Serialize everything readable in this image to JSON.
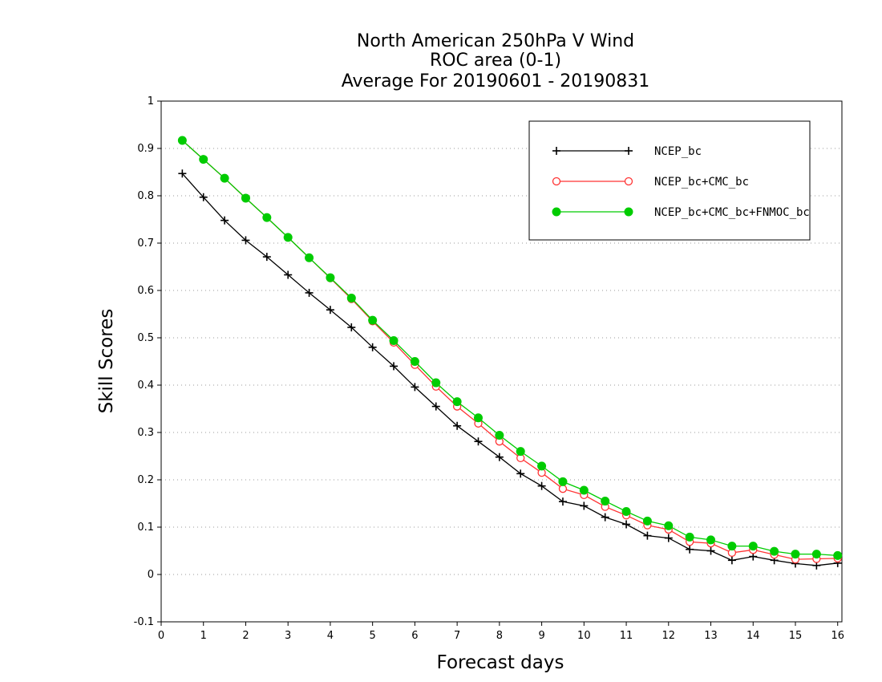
{
  "chart_data": {
    "type": "line",
    "title": [
      "North American 250hPa V Wind",
      "ROC area (0-1)",
      "Average For 20190601 - 20190831"
    ],
    "xlabel": "Forecast days",
    "ylabel": "Skill Scores",
    "xlim": [
      0,
      16.1
    ],
    "ylim": [
      -0.1,
      1
    ],
    "x_ticks": [
      0,
      1,
      2,
      3,
      4,
      5,
      6,
      7,
      8,
      9,
      10,
      11,
      12,
      13,
      14,
      15,
      16
    ],
    "x_tick_labels": [
      "0",
      "1",
      "2",
      "3",
      "4",
      "5",
      "6",
      "7",
      "8",
      "9",
      "10",
      "11",
      "12",
      "13",
      "14",
      "15",
      "16"
    ],
    "y_ticks": [
      -0.1,
      0,
      0.1,
      0.2,
      0.3,
      0.4,
      0.5,
      0.6,
      0.7,
      0.8,
      0.9,
      1
    ],
    "y_tick_labels": [
      "-0.1",
      "0",
      "0.1",
      "0.2",
      "0.3",
      "0.4",
      "0.5",
      "0.6",
      "0.7",
      "0.8",
      "0.9",
      "1"
    ],
    "grid": "horizontal dotted",
    "legend_position": "top-right",
    "x": [
      0.5,
      1,
      1.5,
      2,
      2.5,
      3,
      3.5,
      4,
      4.5,
      5,
      5.5,
      6,
      6.5,
      7,
      7.5,
      8,
      8.5,
      9,
      9.5,
      10,
      10.5,
      11,
      11.5,
      12,
      12.5,
      13,
      13.5,
      14,
      14.5,
      15,
      15.5,
      16
    ],
    "series": [
      {
        "name": "NCEP_bc",
        "color": "#000000",
        "marker": "plus",
        "values": [
          0.847,
          0.797,
          0.748,
          0.706,
          0.671,
          0.633,
          0.595,
          0.559,
          0.522,
          0.48,
          0.44,
          0.396,
          0.355,
          0.314,
          0.281,
          0.248,
          0.213,
          0.187,
          0.154,
          0.145,
          0.121,
          0.106,
          0.082,
          0.077,
          0.053,
          0.05,
          0.03,
          0.038,
          0.03,
          0.023,
          0.019,
          0.024
        ]
      },
      {
        "name": "NCEP_bc+CMC_bc",
        "color": "#ff3333",
        "marker": "open-circle",
        "values": [
          0.917,
          0.877,
          0.837,
          0.795,
          0.754,
          0.712,
          0.669,
          0.626,
          0.582,
          0.535,
          0.49,
          0.443,
          0.397,
          0.355,
          0.319,
          0.281,
          0.246,
          0.215,
          0.181,
          0.168,
          0.143,
          0.125,
          0.104,
          0.095,
          0.069,
          0.066,
          0.046,
          0.052,
          0.042,
          0.032,
          0.033,
          0.034
        ]
      },
      {
        "name": "NCEP_bc+CMC_bc+FNMOC_bc",
        "color": "#00cc00",
        "marker": "filled-circle",
        "values": [
          0.917,
          0.877,
          0.837,
          0.795,
          0.754,
          0.712,
          0.669,
          0.627,
          0.584,
          0.537,
          0.494,
          0.45,
          0.405,
          0.365,
          0.331,
          0.294,
          0.26,
          0.229,
          0.196,
          0.178,
          0.155,
          0.133,
          0.113,
          0.103,
          0.079,
          0.073,
          0.06,
          0.06,
          0.049,
          0.043,
          0.043,
          0.04
        ]
      }
    ]
  }
}
